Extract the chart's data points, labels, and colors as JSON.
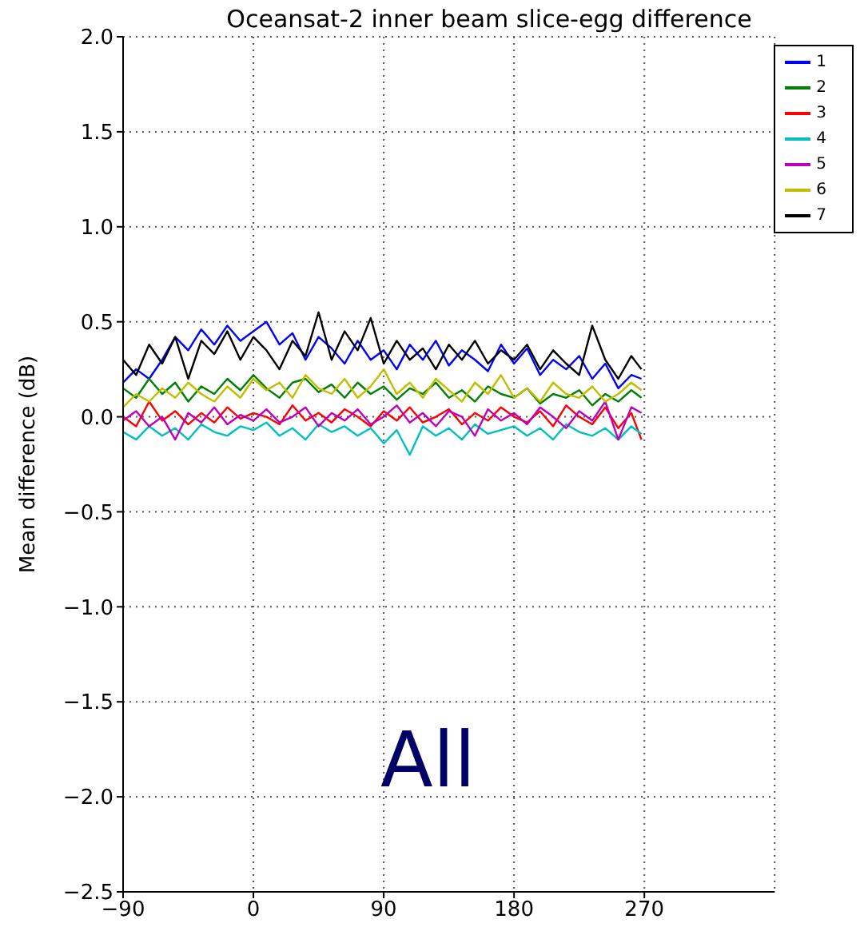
{
  "chart_data": {
    "type": "line",
    "title": "Oceansat-2 inner beam slice-egg difference",
    "ylabel": "Mean difference (dB)",
    "annotations": [
      "All"
    ],
    "x": [
      -90,
      -81,
      -72,
      -63,
      -54,
      -45,
      -36,
      -27,
      -18,
      -9,
      0,
      9,
      18,
      27,
      36,
      45,
      54,
      63,
      72,
      81,
      90,
      99,
      108,
      117,
      126,
      135,
      144,
      153,
      162,
      171,
      180,
      189,
      198,
      207,
      216,
      225,
      234,
      243,
      252,
      261,
      268
    ],
    "series": [
      {
        "name": "1",
        "color": "#0000ff",
        "values": [
          0.18,
          0.25,
          0.2,
          0.3,
          0.42,
          0.35,
          0.46,
          0.38,
          0.48,
          0.4,
          0.45,
          0.5,
          0.38,
          0.44,
          0.3,
          0.42,
          0.36,
          0.28,
          0.4,
          0.3,
          0.35,
          0.25,
          0.38,
          0.3,
          0.4,
          0.27,
          0.35,
          0.3,
          0.24,
          0.38,
          0.28,
          0.36,
          0.22,
          0.3,
          0.25,
          0.32,
          0.2,
          0.28,
          0.15,
          0.22,
          0.2
        ]
      },
      {
        "name": "2",
        "color": "#008000",
        "values": [
          0.15,
          0.1,
          0.2,
          0.12,
          0.18,
          0.08,
          0.16,
          0.12,
          0.2,
          0.14,
          0.22,
          0.15,
          0.1,
          0.18,
          0.2,
          0.13,
          0.17,
          0.1,
          0.18,
          0.12,
          0.16,
          0.09,
          0.15,
          0.12,
          0.18,
          0.1,
          0.14,
          0.08,
          0.16,
          0.12,
          0.1,
          0.15,
          0.07,
          0.12,
          0.1,
          0.14,
          0.06,
          0.12,
          0.08,
          0.14,
          0.1
        ]
      },
      {
        "name": "3",
        "color": "#ff0000",
        "values": [
          0.0,
          -0.05,
          0.08,
          -0.02,
          0.03,
          -0.04,
          0.02,
          -0.03,
          0.05,
          -0.01,
          0.02,
          0.0,
          -0.04,
          0.06,
          -0.02,
          0.02,
          -0.03,
          0.04,
          0.0,
          -0.05,
          0.03,
          -0.02,
          0.05,
          -0.03,
          0.0,
          0.04,
          -0.04,
          0.02,
          -0.02,
          0.05,
          0.0,
          -0.03,
          0.03,
          -0.05,
          0.06,
          0.0,
          -0.04,
          0.05,
          -0.06,
          0.02,
          -0.12
        ]
      },
      {
        "name": "4",
        "color": "#00bfbf",
        "values": [
          -0.08,
          -0.12,
          -0.05,
          -0.1,
          -0.06,
          -0.12,
          -0.04,
          -0.08,
          -0.1,
          -0.05,
          -0.07,
          -0.03,
          -0.1,
          -0.06,
          -0.12,
          -0.04,
          -0.08,
          -0.05,
          -0.1,
          -0.06,
          -0.14,
          -0.07,
          -0.2,
          -0.05,
          -0.1,
          -0.06,
          -0.12,
          -0.04,
          -0.09,
          -0.07,
          -0.05,
          -0.1,
          -0.06,
          -0.12,
          -0.04,
          -0.08,
          -0.1,
          -0.06,
          -0.12,
          -0.05,
          -0.09
        ]
      },
      {
        "name": "5",
        "color": "#bf00bf",
        "values": [
          -0.02,
          0.03,
          -0.05,
          0.0,
          -0.12,
          0.02,
          -0.03,
          0.05,
          -0.04,
          0.01,
          -0.02,
          0.04,
          -0.03,
          0.0,
          0.05,
          -0.05,
          0.02,
          -0.02,
          0.04,
          -0.04,
          0.0,
          0.06,
          -0.03,
          0.02,
          -0.05,
          0.03,
          0.0,
          -0.1,
          0.04,
          -0.02,
          0.02,
          -0.04,
          0.05,
          0.0,
          -0.06,
          0.03,
          -0.02,
          0.08,
          -0.12,
          0.05,
          0.02
        ]
      },
      {
        "name": "6",
        "color": "#bfbf00",
        "values": [
          0.05,
          0.12,
          0.08,
          0.15,
          0.1,
          0.18,
          0.12,
          0.08,
          0.16,
          0.1,
          0.2,
          0.14,
          0.18,
          0.1,
          0.22,
          0.15,
          0.12,
          0.2,
          0.1,
          0.16,
          0.25,
          0.12,
          0.18,
          0.1,
          0.2,
          0.14,
          0.08,
          0.18,
          0.12,
          0.22,
          0.1,
          0.15,
          0.08,
          0.18,
          0.12,
          0.1,
          0.16,
          0.08,
          0.12,
          0.18,
          0.14
        ]
      },
      {
        "name": "7",
        "color": "#000000",
        "values": [
          0.3,
          0.22,
          0.38,
          0.28,
          0.42,
          0.2,
          0.4,
          0.33,
          0.45,
          0.3,
          0.42,
          0.35,
          0.25,
          0.4,
          0.32,
          0.55,
          0.3,
          0.45,
          0.35,
          0.52,
          0.28,
          0.4,
          0.3,
          0.36,
          0.25,
          0.38,
          0.3,
          0.4,
          0.28,
          0.35,
          0.3,
          0.38,
          0.25,
          0.35,
          0.28,
          0.22,
          0.48,
          0.3,
          0.2,
          0.32,
          0.25
        ]
      }
    ],
    "xlim": [
      -90,
      360
    ],
    "xticks": [
      {
        "value": -90,
        "label": "−90"
      },
      0,
      90,
      180,
      270
    ],
    "ylim": [
      -2.5,
      2.0
    ],
    "yticks": [
      {
        "value": -2.5,
        "label": "−2.5"
      },
      {
        "value": -2.0,
        "label": "−2.0"
      },
      {
        "value": -1.5,
        "label": "−1.5"
      },
      {
        "value": -1.0,
        "label": "−1.0"
      },
      {
        "value": -0.5,
        "label": "−0.5"
      },
      {
        "value": 0,
        "label": "0.0"
      },
      0.5,
      {
        "value": 1.0,
        "label": "1.0"
      },
      1.5,
      {
        "value": 2.0,
        "label": "2.0"
      }
    ],
    "grid": true,
    "legend": "top right",
    "line_style": "solid",
    "marker": "none"
  }
}
